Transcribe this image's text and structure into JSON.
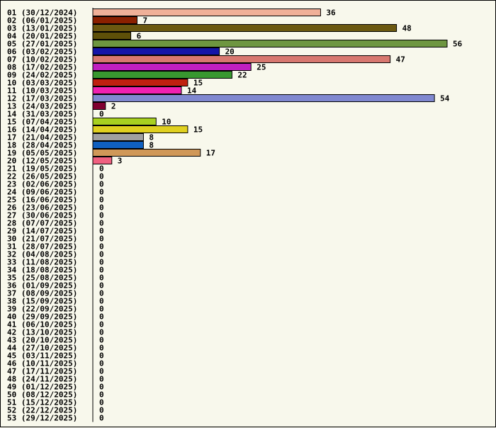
{
  "chart_data": {
    "type": "bar",
    "orientation": "horizontal",
    "title": "",
    "xlabel": "",
    "ylabel": "",
    "xlim": [
      0,
      56
    ],
    "grid": false,
    "categories": [
      "01 (30/12/2024)",
      "02 (06/01/2025)",
      "03 (13/01/2025)",
      "04 (20/01/2025)",
      "05 (27/01/2025)",
      "06 (03/02/2025)",
      "07 (10/02/2025)",
      "08 (17/02/2025)",
      "09 (24/02/2025)",
      "10 (03/03/2025)",
      "11 (10/03/2025)",
      "12 (17/03/2025)",
      "13 (24/03/2025)",
      "14 (31/03/2025)",
      "15 (07/04/2025)",
      "16 (14/04/2025)",
      "17 (21/04/2025)",
      "18 (28/04/2025)",
      "19 (05/05/2025)",
      "20 (12/05/2025)",
      "21 (19/05/2025)",
      "22 (26/05/2025)",
      "23 (02/06/2025)",
      "24 (09/06/2025)",
      "25 (16/06/2025)",
      "26 (23/06/2025)",
      "27 (30/06/2025)",
      "28 (07/07/2025)",
      "29 (14/07/2025)",
      "30 (21/07/2025)",
      "31 (28/07/2025)",
      "32 (04/08/2025)",
      "33 (11/08/2025)",
      "34 (18/08/2025)",
      "35 (25/08/2025)",
      "36 (01/09/2025)",
      "37 (08/09/2025)",
      "38 (15/09/2025)",
      "39 (22/09/2025)",
      "40 (29/09/2025)",
      "41 (06/10/2025)",
      "42 (13/10/2025)",
      "43 (20/10/2025)",
      "44 (27/10/2025)",
      "45 (03/11/2025)",
      "46 (10/11/2025)",
      "47 (17/11/2025)",
      "48 (24/11/2025)",
      "49 (01/12/2025)",
      "50 (08/12/2025)",
      "51 (15/12/2025)",
      "52 (22/12/2025)",
      "53 (29/12/2025)"
    ],
    "values": [
      36,
      7,
      48,
      6,
      56,
      20,
      47,
      25,
      22,
      15,
      14,
      54,
      2,
      0,
      10,
      15,
      8,
      8,
      17,
      3,
      0,
      0,
      0,
      0,
      0,
      0,
      0,
      0,
      0,
      0,
      0,
      0,
      0,
      0,
      0,
      0,
      0,
      0,
      0,
      0,
      0,
      0,
      0,
      0,
      0,
      0,
      0,
      0,
      0,
      0,
      0,
      0,
      0
    ],
    "value_labels": [
      "36",
      "7",
      "48",
      "6",
      "56",
      "20",
      "47",
      "25",
      "22",
      "15",
      "14",
      "54",
      "2",
      "0",
      "10",
      "15",
      "8",
      "8",
      "17",
      "3",
      "0",
      "0",
      "0",
      "0",
      "0",
      "0",
      "0",
      "0",
      "0",
      "0",
      "0",
      "0",
      "0",
      "0",
      "0",
      "0",
      "0",
      "0",
      "0",
      "0",
      "0",
      "0",
      "0",
      "0",
      "0",
      "0",
      "0",
      "0",
      "0",
      "0",
      "0",
      "0",
      "0"
    ],
    "colors": [
      "#f0b098",
      "#8b2000",
      "#6b5810",
      "#5e5008",
      "#6e9640",
      "#1414a8",
      "#d87870",
      "#c020c0",
      "#389830",
      "#c02010",
      "#f020b0",
      "#8088d0",
      "#800030",
      "#ffffff",
      "#a8d020",
      "#e0d020",
      "#a0a0a0",
      "#1060c0",
      "#d09858",
      "#f06080"
    ]
  }
}
